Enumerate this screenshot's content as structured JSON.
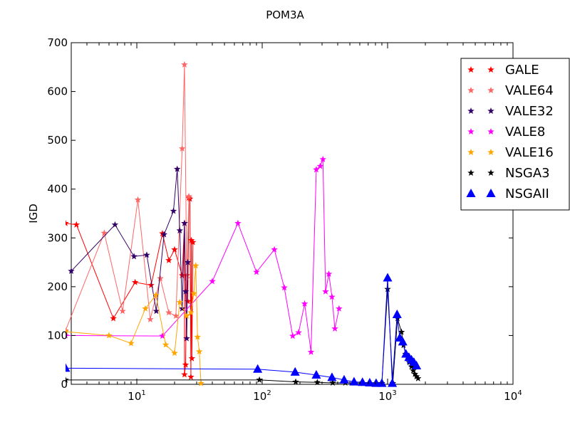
{
  "chart_data": {
    "type": "line",
    "title": "POM3A",
    "xlabel": "",
    "ylabel": "IGD",
    "xscale": "log",
    "xlim": [
      3,
      10000
    ],
    "ylim": [
      0,
      700
    ],
    "grid": false,
    "legend_position": "top-right",
    "x_tick_labels": [
      {
        "value": 10,
        "base": "10",
        "exp": "1"
      },
      {
        "value": 100,
        "base": "10",
        "exp": "2"
      },
      {
        "value": 1000,
        "base": "10",
        "exp": "3"
      },
      {
        "value": 10000,
        "base": "10",
        "exp": "4"
      }
    ],
    "y_ticks": [
      0,
      100,
      200,
      300,
      400,
      500,
      600,
      700
    ],
    "series": [
      {
        "name": "GALE",
        "color": "#ff0000",
        "marker": "star",
        "points": [
          [
            2.7,
            330
          ],
          [
            3.3,
            327
          ],
          [
            6.5,
            135
          ],
          [
            9.7,
            209
          ],
          [
            13,
            203
          ],
          [
            16,
            309
          ],
          [
            18,
            254
          ],
          [
            20,
            276
          ],
          [
            23,
            223
          ],
          [
            24,
            330
          ],
          [
            24,
            20
          ],
          [
            24.5,
            40
          ],
          [
            25,
            223
          ],
          [
            25.5,
            170
          ],
          [
            26,
            382
          ],
          [
            26.5,
            380
          ],
          [
            27,
            15
          ],
          [
            27.2,
            295
          ],
          [
            27.5,
            53
          ],
          [
            28,
            291
          ]
        ]
      },
      {
        "name": "VALE64",
        "color": "#ff6666",
        "marker": "star",
        "points": [
          [
            2.7,
            110
          ],
          [
            5.5,
            310
          ],
          [
            7.7,
            150
          ],
          [
            10.2,
            378
          ],
          [
            12.8,
            133
          ],
          [
            15.4,
            217
          ],
          [
            18,
            147
          ],
          [
            20.5,
            140
          ],
          [
            23,
            483
          ],
          [
            24,
            655
          ],
          [
            25,
            217
          ],
          [
            26,
            385
          ]
        ]
      },
      {
        "name": "VALE32",
        "color": "#330066",
        "marker": "star",
        "points": [
          [
            3,
            232
          ],
          [
            6.7,
            327
          ],
          [
            9.5,
            262
          ],
          [
            12,
            265
          ],
          [
            14.3,
            150
          ],
          [
            16.5,
            307
          ],
          [
            19.6,
            355
          ],
          [
            21,
            441
          ],
          [
            22,
            315
          ],
          [
            23,
            155
          ],
          [
            24,
            330
          ],
          [
            24.5,
            190
          ],
          [
            25,
            94
          ],
          [
            25.5,
            250
          ]
        ]
      },
      {
        "name": "VALE8",
        "color": "#ff00ff",
        "marker": "star",
        "points": [
          [
            2.7,
            100
          ],
          [
            16,
            99
          ],
          [
            40,
            211
          ],
          [
            64,
            330
          ],
          [
            90,
            230
          ],
          [
            125,
            276
          ],
          [
            150,
            198
          ],
          [
            175,
            99
          ],
          [
            195,
            106
          ],
          [
            218,
            165
          ],
          [
            245,
            66
          ],
          [
            270,
            440
          ],
          [
            290,
            447
          ],
          [
            305,
            461
          ],
          [
            320,
            190
          ],
          [
            340,
            226
          ],
          [
            360,
            179
          ],
          [
            380,
            114
          ],
          [
            410,
            155
          ]
        ]
      },
      {
        "name": "VALE16",
        "color": "#ffa500",
        "marker": "star",
        "points": [
          [
            2.7,
            108
          ],
          [
            6,
            100
          ],
          [
            9,
            84
          ],
          [
            11.7,
            155
          ],
          [
            14.2,
            183
          ],
          [
            17,
            81
          ],
          [
            20,
            64
          ],
          [
            22,
            168
          ],
          [
            25,
            140
          ],
          [
            27,
            147
          ],
          [
            28.5,
            186
          ],
          [
            29.5,
            243
          ],
          [
            30.5,
            97
          ],
          [
            31.5,
            67
          ],
          [
            32.5,
            2
          ]
        ]
      },
      {
        "name": "NSGA3",
        "color": "#000000",
        "marker": "star",
        "points": [
          [
            2.7,
            9
          ],
          [
            95,
            9
          ],
          [
            185,
            5
          ],
          [
            275,
            4
          ],
          [
            365,
            3
          ],
          [
            460,
            3
          ],
          [
            550,
            3
          ],
          [
            640,
            2
          ],
          [
            720,
            2
          ],
          [
            810,
            2
          ],
          [
            900,
            2
          ],
          [
            1000,
            195
          ],
          [
            1100,
            2
          ],
          [
            1200,
            135
          ],
          [
            1290,
            107
          ],
          [
            1340,
            80
          ],
          [
            1390,
            62
          ],
          [
            1440,
            57
          ],
          [
            1490,
            45
          ],
          [
            1550,
            36
          ],
          [
            1600,
            28
          ],
          [
            1650,
            21
          ],
          [
            1700,
            16
          ],
          [
            1750,
            12
          ]
        ]
      },
      {
        "name": "NSGAII",
        "color": "#0000ff",
        "marker": "triangle",
        "points": [
          [
            2.7,
            33
          ],
          [
            92,
            31
          ],
          [
            183,
            25
          ],
          [
            270,
            19
          ],
          [
            360,
            14
          ],
          [
            450,
            9
          ],
          [
            540,
            5
          ],
          [
            630,
            4
          ],
          [
            720,
            3
          ],
          [
            810,
            2
          ],
          [
            900,
            2
          ],
          [
            1000,
            218
          ],
          [
            1090,
            2
          ],
          [
            1190,
            143
          ],
          [
            1250,
            95
          ],
          [
            1320,
            87
          ],
          [
            1400,
            62
          ],
          [
            1480,
            55
          ],
          [
            1550,
            50
          ],
          [
            1620,
            45
          ],
          [
            1700,
            38
          ]
        ]
      }
    ]
  }
}
